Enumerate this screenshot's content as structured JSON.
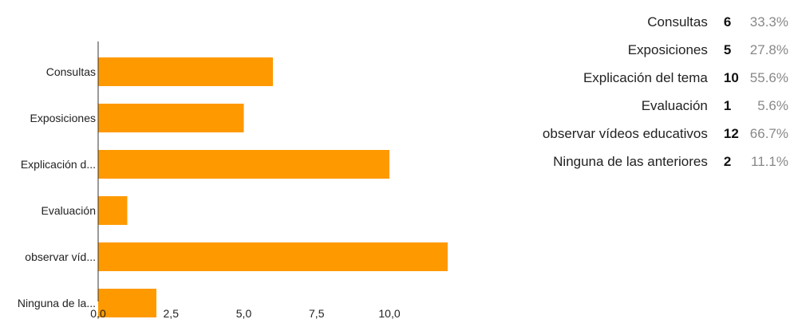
{
  "chart_data": {
    "type": "bar",
    "orientation": "horizontal",
    "categories": [
      "Consultas",
      "Exposiciones",
      "Explicación d...",
      "Evaluación",
      "observar víd...",
      "Ninguna de la..."
    ],
    "values": [
      6,
      5,
      10,
      1,
      12,
      2
    ],
    "xlim": [
      0,
      12
    ],
    "xticks": [
      "0,0",
      "2,5",
      "5,0",
      "7,5",
      "10,0"
    ],
    "xtick_values": [
      0,
      2.5,
      5,
      7.5,
      10
    ],
    "bar_color": "#ff9900",
    "grid": false
  },
  "summary": {
    "rows": [
      {
        "label": "Consultas",
        "count": "6",
        "percent": "33.3%"
      },
      {
        "label": "Exposiciones",
        "count": "5",
        "percent": "27.8%"
      },
      {
        "label": "Explicación del tema",
        "count": "10",
        "percent": "55.6%"
      },
      {
        "label": "Evaluación",
        "count": "1",
        "percent": "5.6%"
      },
      {
        "label": "observar vídeos educativos",
        "count": "12",
        "percent": "66.7%"
      },
      {
        "label": "Ninguna de las anteriores",
        "count": "2",
        "percent": "11.1%"
      }
    ]
  }
}
